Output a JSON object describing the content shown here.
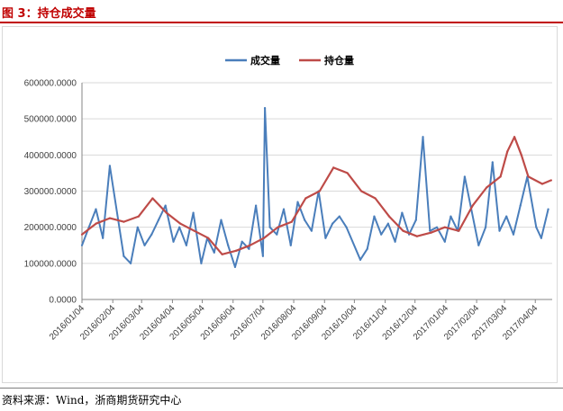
{
  "header": {
    "title": "图 3：持仓成交量"
  },
  "footer": {
    "source": "资料来源：Wind，浙商期货研究中心"
  },
  "colors": {
    "title": "#c00000",
    "volume": "#4a7ebb",
    "open_interest": "#be4b48",
    "grid": "#d9d9d9"
  },
  "chart_data": {
    "type": "line",
    "title": "",
    "xlabel": "",
    "ylabel": "",
    "ylim": [
      0,
      600000
    ],
    "y_ticks": [
      "0.0000",
      "100000.0000",
      "200000.0000",
      "300000.0000",
      "400000.0000",
      "500000.0000",
      "600000.0000"
    ],
    "x_ticks": [
      "2016/01/04",
      "2016/02/04",
      "2016/03/04",
      "2016/04/04",
      "2016/05/04",
      "2016/06/04",
      "2016/07/04",
      "2016/08/04",
      "2016/09/04",
      "2016/10/04",
      "2016/11/04",
      "2016/12/04",
      "2017/01/04",
      "2017/02/04",
      "2017/03/04",
      "2017/04/04"
    ],
    "grid": true,
    "legend": "top-center",
    "series": [
      {
        "name": "成交量",
        "x": [
          "2016-01-04",
          "2016-01-11",
          "2016-01-18",
          "2016-01-25",
          "2016-02-01",
          "2016-02-15",
          "2016-02-22",
          "2016-02-29",
          "2016-03-07",
          "2016-03-14",
          "2016-03-21",
          "2016-03-28",
          "2016-04-05",
          "2016-04-11",
          "2016-04-18",
          "2016-04-25",
          "2016-05-03",
          "2016-05-09",
          "2016-05-16",
          "2016-05-23",
          "2016-05-30",
          "2016-06-06",
          "2016-06-13",
          "2016-06-20",
          "2016-06-27",
          "2016-07-04",
          "2016-07-06",
          "2016-07-11",
          "2016-07-18",
          "2016-07-25",
          "2016-08-01",
          "2016-08-08",
          "2016-08-15",
          "2016-08-22",
          "2016-08-29",
          "2016-09-05",
          "2016-09-12",
          "2016-09-19",
          "2016-09-26",
          "2016-10-10",
          "2016-10-17",
          "2016-10-24",
          "2016-10-31",
          "2016-11-07",
          "2016-11-14",
          "2016-11-21",
          "2016-11-28",
          "2016-12-05",
          "2016-12-12",
          "2016-12-19",
          "2016-12-26",
          "2017-01-03",
          "2017-01-09",
          "2017-01-16",
          "2017-01-23",
          "2017-02-06",
          "2017-02-13",
          "2017-02-20",
          "2017-02-27",
          "2017-03-06",
          "2017-03-13",
          "2017-03-20",
          "2017-03-27",
          "2017-04-05",
          "2017-04-10",
          "2017-04-17"
        ],
        "values": [
          150000,
          200000,
          250000,
          170000,
          370000,
          120000,
          100000,
          200000,
          150000,
          180000,
          220000,
          260000,
          160000,
          200000,
          150000,
          240000,
          100000,
          170000,
          130000,
          220000,
          150000,
          90000,
          160000,
          140000,
          260000,
          120000,
          530000,
          200000,
          180000,
          250000,
          150000,
          270000,
          220000,
          190000,
          300000,
          170000,
          210000,
          230000,
          200000,
          110000,
          140000,
          230000,
          180000,
          210000,
          160000,
          240000,
          180000,
          220000,
          450000,
          190000,
          200000,
          160000,
          230000,
          190000,
          340000,
          150000,
          200000,
          380000,
          190000,
          230000,
          180000,
          260000,
          340000,
          200000,
          170000,
          250000
        ]
      },
      {
        "name": "持仓量",
        "x": [
          "2016-01-04",
          "2016-01-18",
          "2016-02-01",
          "2016-02-15",
          "2016-03-01",
          "2016-03-15",
          "2016-03-29",
          "2016-04-12",
          "2016-04-26",
          "2016-05-10",
          "2016-05-24",
          "2016-06-07",
          "2016-06-21",
          "2016-07-05",
          "2016-07-19",
          "2016-08-02",
          "2016-08-16",
          "2016-08-30",
          "2016-09-13",
          "2016-09-27",
          "2016-10-11",
          "2016-10-25",
          "2016-11-08",
          "2016-11-22",
          "2016-12-06",
          "2016-12-20",
          "2017-01-03",
          "2017-01-17",
          "2017-01-31",
          "2017-02-14",
          "2017-02-28",
          "2017-03-07",
          "2017-03-14",
          "2017-03-21",
          "2017-03-28",
          "2017-04-11",
          "2017-04-20"
        ],
        "values": [
          180000,
          210000,
          225000,
          215000,
          230000,
          280000,
          240000,
          210000,
          190000,
          170000,
          125000,
          135000,
          150000,
          170000,
          200000,
          215000,
          280000,
          300000,
          365000,
          350000,
          300000,
          280000,
          230000,
          190000,
          175000,
          185000,
          200000,
          190000,
          260000,
          310000,
          340000,
          410000,
          450000,
          400000,
          340000,
          320000,
          330000
        ]
      }
    ]
  }
}
